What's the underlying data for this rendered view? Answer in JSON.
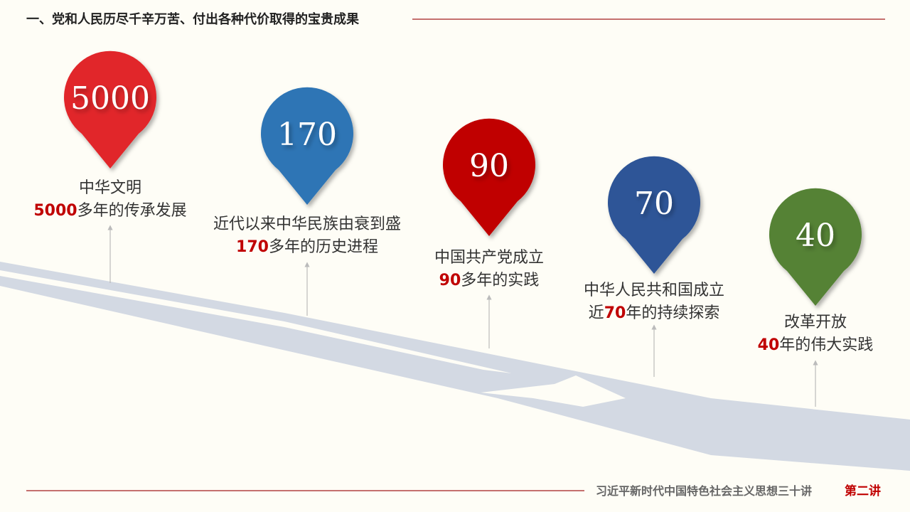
{
  "header": {
    "title": "一、党和人民历尽千辛万苦、付出各种代价取得的宝贵成果"
  },
  "items": [
    {
      "number": "5000",
      "line1": "中华文明",
      "highlight": "5000",
      "rest": "多年的传承发展",
      "color": "#e1262c"
    },
    {
      "number": "170",
      "line1": "近代以来中华民族由衰到盛",
      "highlight": "170",
      "rest": "多年的历史进程",
      "color": "#2e74b5"
    },
    {
      "number": "90",
      "line1": "中国共产党成立",
      "highlight": "90",
      "rest": "多年的实践",
      "color": "#c00000"
    },
    {
      "number": "70",
      "line1": "中华人民共和国成立",
      "highlight": "70",
      "rest": "年的持续探索",
      "prefix": "近",
      "color": "#2f5597"
    },
    {
      "number": "40",
      "line1": "改革开放",
      "highlight": "40",
      "rest": "年的伟大实践",
      "color": "#548235"
    }
  ],
  "footer": {
    "text": "习近平新时代中国特色社会主义思想三十讲",
    "lecture": "第二讲"
  }
}
